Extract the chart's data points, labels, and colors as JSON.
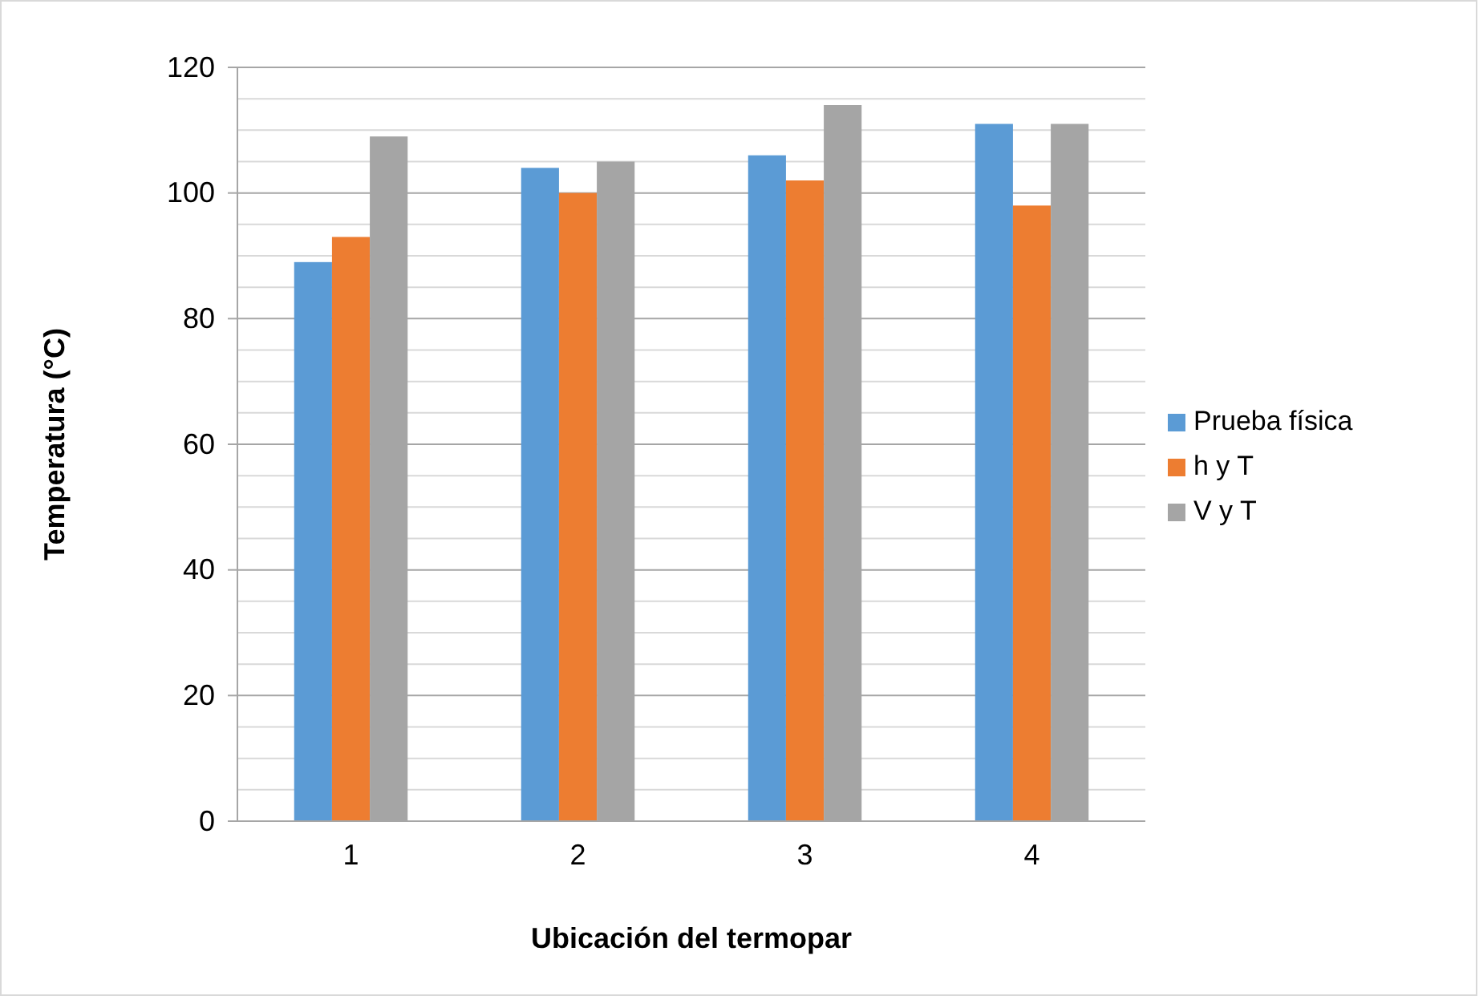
{
  "chart_data": {
    "type": "bar",
    "xlabel": "Ubicación del termopar",
    "ylabel": "Temperatura (°C)",
    "categories": [
      "1",
      "2",
      "3",
      "4"
    ],
    "series": [
      {
        "name": "Prueba física",
        "color": "#5b9bd5",
        "values": [
          89,
          104,
          106,
          111
        ]
      },
      {
        "name": "h y T",
        "color": "#ed7d31",
        "values": [
          93,
          100,
          102,
          98
        ]
      },
      {
        "name": "V y T",
        "color": "#a5a5a5",
        "values": [
          109,
          105,
          114,
          111
        ]
      }
    ],
    "ylim": [
      0,
      120
    ],
    "yticks": [
      0,
      {
        "value": 5,
        "label": null
      },
      {
        "value": 10,
        "label": null
      },
      {
        "value": 15,
        "label": null
      },
      20,
      {
        "value": 25,
        "label": null
      },
      {
        "value": 30,
        "label": null
      },
      {
        "value": 35,
        "label": null
      },
      40,
      {
        "value": 45,
        "label": null
      },
      {
        "value": 50,
        "label": null
      },
      {
        "value": 55,
        "label": null
      },
      60,
      {
        "value": 65,
        "label": null
      },
      {
        "value": 70,
        "label": null
      },
      {
        "value": 75,
        "label": null
      },
      80,
      {
        "value": 85,
        "label": null
      },
      {
        "value": 90,
        "label": null
      },
      {
        "value": 95,
        "label": null
      },
      100,
      {
        "value": 105,
        "label": null
      },
      {
        "value": 110,
        "label": null
      },
      {
        "value": 115,
        "label": null
      },
      120
    ],
    "grid": true,
    "legend": "right"
  }
}
